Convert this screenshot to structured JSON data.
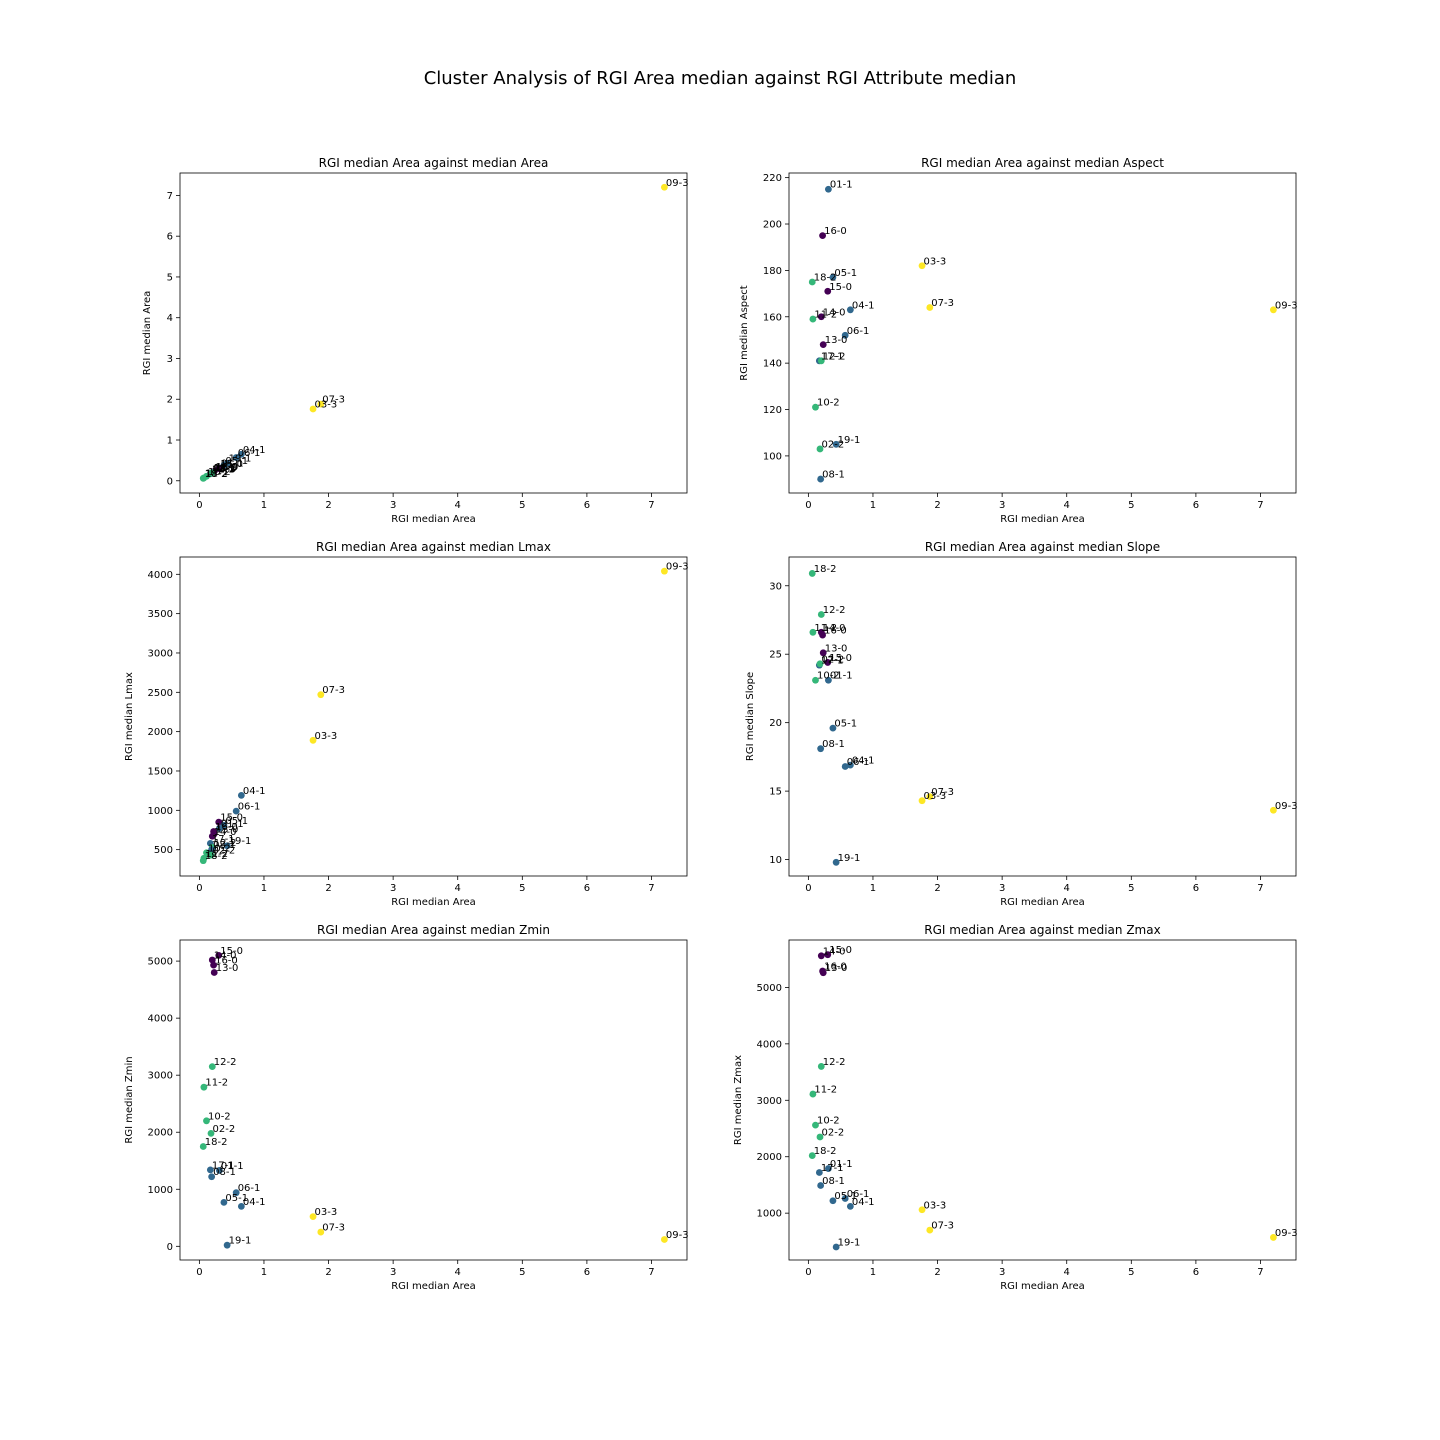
{
  "figure": {
    "suptitle": "Cluster Analysis of RGI Area median against RGI Attribute median"
  },
  "cluster_colors": {
    "0": "#440154",
    "1": "#31688e",
    "2": "#35b779",
    "3": "#fde725"
  },
  "chart_data": [
    {
      "type": "scatter",
      "title": "RGI median Area against median Area",
      "xlabel": "RGI median Area",
      "ylabel": "RGI median Area",
      "xlim": [
        -0.3,
        7.55
      ],
      "ylim": [
        -0.3,
        7.55
      ],
      "xticks": [
        0,
        1,
        2,
        3,
        4,
        5,
        6,
        7
      ],
      "yticks": [
        0,
        1,
        2,
        3,
        4,
        5,
        6,
        7
      ],
      "points": [
        {
          "label": "09-3",
          "cluster": 3,
          "x": 7.2,
          "y": 7.2
        },
        {
          "label": "07-3",
          "cluster": 3,
          "x": 1.88,
          "y": 1.88
        },
        {
          "label": "03-3",
          "cluster": 3,
          "x": 1.76,
          "y": 1.76
        },
        {
          "label": "04-1",
          "cluster": 1,
          "x": 0.65,
          "y": 0.65
        },
        {
          "label": "06-1",
          "cluster": 1,
          "x": 0.57,
          "y": 0.57
        },
        {
          "label": "19-1",
          "cluster": 1,
          "x": 0.43,
          "y": 0.43
        },
        {
          "label": "05-1",
          "cluster": 1,
          "x": 0.38,
          "y": 0.38
        },
        {
          "label": "01-1",
          "cluster": 1,
          "x": 0.31,
          "y": 0.31
        },
        {
          "label": "15-0",
          "cluster": 0,
          "x": 0.3,
          "y": 0.3
        },
        {
          "label": "16-0",
          "cluster": 0,
          "x": 0.22,
          "y": 0.22
        },
        {
          "label": "13-0",
          "cluster": 0,
          "x": 0.23,
          "y": 0.23
        },
        {
          "label": "14-0",
          "cluster": 0,
          "x": 0.2,
          "y": 0.2
        },
        {
          "label": "17-1",
          "cluster": 1,
          "x": 0.17,
          "y": 0.17
        },
        {
          "label": "08-1",
          "cluster": 1,
          "x": 0.19,
          "y": 0.19
        },
        {
          "label": "12-2",
          "cluster": 2,
          "x": 0.2,
          "y": 0.2
        },
        {
          "label": "02-2",
          "cluster": 2,
          "x": 0.18,
          "y": 0.18
        },
        {
          "label": "10-2",
          "cluster": 2,
          "x": 0.11,
          "y": 0.11
        },
        {
          "label": "11-2",
          "cluster": 2,
          "x": 0.07,
          "y": 0.07
        },
        {
          "label": "18-2",
          "cluster": 2,
          "x": 0.06,
          "y": 0.06
        }
      ]
    },
    {
      "type": "scatter",
      "title": "RGI median Area against median Aspect",
      "xlabel": "RGI median Area",
      "ylabel": "RGI median Aspect",
      "xlim": [
        -0.3,
        7.55
      ],
      "ylim": [
        84,
        222
      ],
      "xticks": [
        0,
        1,
        2,
        3,
        4,
        5,
        6,
        7
      ],
      "yticks": [
        100,
        120,
        140,
        160,
        180,
        200,
        220
      ],
      "points": [
        {
          "label": "01-1",
          "cluster": 1,
          "x": 0.31,
          "y": 215
        },
        {
          "label": "16-0",
          "cluster": 0,
          "x": 0.22,
          "y": 195
        },
        {
          "label": "03-3",
          "cluster": 3,
          "x": 1.76,
          "y": 182
        },
        {
          "label": "05-1",
          "cluster": 1,
          "x": 0.38,
          "y": 177
        },
        {
          "label": "18-2",
          "cluster": 2,
          "x": 0.06,
          "y": 175
        },
        {
          "label": "15-0",
          "cluster": 0,
          "x": 0.3,
          "y": 171
        },
        {
          "label": "07-3",
          "cluster": 3,
          "x": 1.88,
          "y": 164
        },
        {
          "label": "09-3",
          "cluster": 3,
          "x": 7.2,
          "y": 163
        },
        {
          "label": "04-1",
          "cluster": 1,
          "x": 0.65,
          "y": 163
        },
        {
          "label": "14-0",
          "cluster": 0,
          "x": 0.2,
          "y": 160
        },
        {
          "label": "11-2",
          "cluster": 2,
          "x": 0.07,
          "y": 159
        },
        {
          "label": "06-1",
          "cluster": 1,
          "x": 0.57,
          "y": 152
        },
        {
          "label": "13-0",
          "cluster": 0,
          "x": 0.23,
          "y": 148
        },
        {
          "label": "17-1",
          "cluster": 1,
          "x": 0.17,
          "y": 141
        },
        {
          "label": "12-2",
          "cluster": 2,
          "x": 0.2,
          "y": 141
        },
        {
          "label": "10-2",
          "cluster": 2,
          "x": 0.11,
          "y": 121
        },
        {
          "label": "19-1",
          "cluster": 1,
          "x": 0.43,
          "y": 105
        },
        {
          "label": "02-2",
          "cluster": 2,
          "x": 0.18,
          "y": 103
        },
        {
          "label": "08-1",
          "cluster": 1,
          "x": 0.19,
          "y": 90
        }
      ]
    },
    {
      "type": "scatter",
      "title": "RGI median Area against median Lmax",
      "xlabel": "RGI median Area",
      "ylabel": "RGI median Lmax",
      "xlim": [
        -0.3,
        7.55
      ],
      "ylim": [
        165,
        4220
      ],
      "xticks": [
        0,
        1,
        2,
        3,
        4,
        5,
        6,
        7
      ],
      "yticks": [
        500,
        1000,
        1500,
        2000,
        2500,
        3000,
        3500,
        4000
      ],
      "points": [
        {
          "label": "09-3",
          "cluster": 3,
          "x": 7.2,
          "y": 4040
        },
        {
          "label": "07-3",
          "cluster": 3,
          "x": 1.88,
          "y": 2470
        },
        {
          "label": "03-3",
          "cluster": 3,
          "x": 1.76,
          "y": 1890
        },
        {
          "label": "04-1",
          "cluster": 1,
          "x": 0.65,
          "y": 1190
        },
        {
          "label": "06-1",
          "cluster": 1,
          "x": 0.57,
          "y": 990
        },
        {
          "label": "15-0",
          "cluster": 0,
          "x": 0.3,
          "y": 850
        },
        {
          "label": "05-1",
          "cluster": 1,
          "x": 0.38,
          "y": 810
        },
        {
          "label": "01-1",
          "cluster": 1,
          "x": 0.31,
          "y": 770
        },
        {
          "label": "16-0",
          "cluster": 0,
          "x": 0.22,
          "y": 730
        },
        {
          "label": "13-0",
          "cluster": 0,
          "x": 0.23,
          "y": 700
        },
        {
          "label": "14-0",
          "cluster": 0,
          "x": 0.2,
          "y": 670
        },
        {
          "label": "19-1",
          "cluster": 1,
          "x": 0.43,
          "y": 550
        },
        {
          "label": "17-1",
          "cluster": 1,
          "x": 0.17,
          "y": 580
        },
        {
          "label": "12-2",
          "cluster": 2,
          "x": 0.2,
          "y": 530
        },
        {
          "label": "08-1",
          "cluster": 1,
          "x": 0.19,
          "y": 500
        },
        {
          "label": "10-2",
          "cluster": 2,
          "x": 0.11,
          "y": 460
        },
        {
          "label": "02-2",
          "cluster": 2,
          "x": 0.18,
          "y": 430
        },
        {
          "label": "11-2",
          "cluster": 2,
          "x": 0.07,
          "y": 390
        },
        {
          "label": "18-2",
          "cluster": 2,
          "x": 0.06,
          "y": 360
        }
      ]
    },
    {
      "type": "scatter",
      "title": "RGI median Area against median Slope",
      "xlabel": "RGI median Area",
      "ylabel": "RGI median Slope",
      "xlim": [
        -0.3,
        7.55
      ],
      "ylim": [
        8.8,
        32.1
      ],
      "xticks": [
        0,
        1,
        2,
        3,
        4,
        5,
        6,
        7
      ],
      "yticks": [
        10,
        15,
        20,
        25,
        30
      ],
      "points": [
        {
          "label": "18-2",
          "cluster": 2,
          "x": 0.06,
          "y": 30.9
        },
        {
          "label": "12-2",
          "cluster": 2,
          "x": 0.2,
          "y": 27.9
        },
        {
          "label": "11-2",
          "cluster": 2,
          "x": 0.07,
          "y": 26.6
        },
        {
          "label": "14-0",
          "cluster": 0,
          "x": 0.2,
          "y": 26.6
        },
        {
          "label": "16-0",
          "cluster": 0,
          "x": 0.22,
          "y": 26.4
        },
        {
          "label": "13-0",
          "cluster": 0,
          "x": 0.23,
          "y": 25.1
        },
        {
          "label": "15-0",
          "cluster": 0,
          "x": 0.3,
          "y": 24.4
        },
        {
          "label": "17-1",
          "cluster": 1,
          "x": 0.17,
          "y": 24.2
        },
        {
          "label": "02-2",
          "cluster": 2,
          "x": 0.18,
          "y": 24.3
        },
        {
          "label": "10-2",
          "cluster": 2,
          "x": 0.11,
          "y": 23.1
        },
        {
          "label": "01-1",
          "cluster": 1,
          "x": 0.31,
          "y": 23.1
        },
        {
          "label": "05-1",
          "cluster": 1,
          "x": 0.38,
          "y": 19.6
        },
        {
          "label": "08-1",
          "cluster": 1,
          "x": 0.19,
          "y": 18.1
        },
        {
          "label": "06-1",
          "cluster": 1,
          "x": 0.57,
          "y": 16.8
        },
        {
          "label": "04-1",
          "cluster": 1,
          "x": 0.65,
          "y": 16.9
        },
        {
          "label": "07-3",
          "cluster": 3,
          "x": 1.88,
          "y": 14.6
        },
        {
          "label": "03-3",
          "cluster": 3,
          "x": 1.76,
          "y": 14.3
        },
        {
          "label": "09-3",
          "cluster": 3,
          "x": 7.2,
          "y": 13.6
        },
        {
          "label": "19-1",
          "cluster": 1,
          "x": 0.43,
          "y": 9.8
        }
      ]
    },
    {
      "type": "scatter",
      "title": "RGI median Area against median Zmin",
      "xlabel": "RGI median Area",
      "ylabel": "RGI median Zmin",
      "xlim": [
        -0.3,
        7.55
      ],
      "ylim": [
        -240,
        5370
      ],
      "xticks": [
        0,
        1,
        2,
        3,
        4,
        5,
        6,
        7
      ],
      "yticks": [
        0,
        1000,
        2000,
        3000,
        4000,
        5000
      ],
      "points": [
        {
          "label": "15-0",
          "cluster": 0,
          "x": 0.3,
          "y": 5100
        },
        {
          "label": "14-0",
          "cluster": 0,
          "x": 0.2,
          "y": 5020
        },
        {
          "label": "16-0",
          "cluster": 0,
          "x": 0.22,
          "y": 4930
        },
        {
          "label": "13-0",
          "cluster": 0,
          "x": 0.23,
          "y": 4800
        },
        {
          "label": "12-2",
          "cluster": 2,
          "x": 0.2,
          "y": 3150
        },
        {
          "label": "11-2",
          "cluster": 2,
          "x": 0.07,
          "y": 2790
        },
        {
          "label": "10-2",
          "cluster": 2,
          "x": 0.11,
          "y": 2200
        },
        {
          "label": "02-2",
          "cluster": 2,
          "x": 0.18,
          "y": 1980
        },
        {
          "label": "18-2",
          "cluster": 2,
          "x": 0.06,
          "y": 1750
        },
        {
          "label": "17-1",
          "cluster": 1,
          "x": 0.17,
          "y": 1340
        },
        {
          "label": "01-1",
          "cluster": 1,
          "x": 0.31,
          "y": 1330
        },
        {
          "label": "08-1",
          "cluster": 1,
          "x": 0.19,
          "y": 1220
        },
        {
          "label": "06-1",
          "cluster": 1,
          "x": 0.57,
          "y": 940
        },
        {
          "label": "05-1",
          "cluster": 1,
          "x": 0.38,
          "y": 770
        },
        {
          "label": "04-1",
          "cluster": 1,
          "x": 0.65,
          "y": 700
        },
        {
          "label": "03-3",
          "cluster": 3,
          "x": 1.76,
          "y": 520
        },
        {
          "label": "07-3",
          "cluster": 3,
          "x": 1.88,
          "y": 250
        },
        {
          "label": "09-3",
          "cluster": 3,
          "x": 7.2,
          "y": 120
        },
        {
          "label": "19-1",
          "cluster": 1,
          "x": 0.43,
          "y": 20
        }
      ]
    },
    {
      "type": "scatter",
      "title": "RGI median Area against median Zmax",
      "xlabel": "RGI median Area",
      "ylabel": "RGI median Zmax",
      "xlim": [
        -0.3,
        7.55
      ],
      "ylim": [
        170,
        5840
      ],
      "xticks": [
        0,
        1,
        2,
        3,
        4,
        5,
        6,
        7
      ],
      "yticks": [
        1000,
        2000,
        3000,
        4000,
        5000
      ],
      "points": [
        {
          "label": "14-0",
          "cluster": 0,
          "x": 0.2,
          "y": 5560
        },
        {
          "label": "15-0",
          "cluster": 0,
          "x": 0.3,
          "y": 5580
        },
        {
          "label": "16-0",
          "cluster": 0,
          "x": 0.22,
          "y": 5290
        },
        {
          "label": "13-0",
          "cluster": 0,
          "x": 0.23,
          "y": 5260
        },
        {
          "label": "12-2",
          "cluster": 2,
          "x": 0.2,
          "y": 3600
        },
        {
          "label": "11-2",
          "cluster": 2,
          "x": 0.07,
          "y": 3110
        },
        {
          "label": "10-2",
          "cluster": 2,
          "x": 0.11,
          "y": 2560
        },
        {
          "label": "02-2",
          "cluster": 2,
          "x": 0.18,
          "y": 2350
        },
        {
          "label": "18-2",
          "cluster": 2,
          "x": 0.06,
          "y": 2020
        },
        {
          "label": "01-1",
          "cluster": 1,
          "x": 0.31,
          "y": 1790
        },
        {
          "label": "17-1",
          "cluster": 1,
          "x": 0.17,
          "y": 1720
        },
        {
          "label": "08-1",
          "cluster": 1,
          "x": 0.19,
          "y": 1490
        },
        {
          "label": "06-1",
          "cluster": 1,
          "x": 0.57,
          "y": 1260
        },
        {
          "label": "05-1",
          "cluster": 1,
          "x": 0.38,
          "y": 1220
        },
        {
          "label": "04-1",
          "cluster": 1,
          "x": 0.65,
          "y": 1120
        },
        {
          "label": "03-3",
          "cluster": 3,
          "x": 1.76,
          "y": 1060
        },
        {
          "label": "07-3",
          "cluster": 3,
          "x": 1.88,
          "y": 700
        },
        {
          "label": "09-3",
          "cluster": 3,
          "x": 7.2,
          "y": 570
        },
        {
          "label": "19-1",
          "cluster": 1,
          "x": 0.43,
          "y": 400
        }
      ]
    }
  ]
}
